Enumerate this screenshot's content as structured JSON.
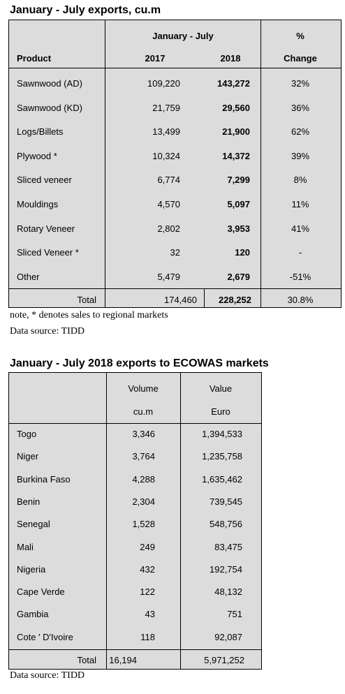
{
  "table1": {
    "title": "January - July exports, cu.m",
    "header": {
      "group": "January - July",
      "percent": "%",
      "product": "Product",
      "year1": "2017",
      "year2": "2018",
      "change": "Change"
    },
    "rows": [
      [
        "Sawnwood (AD)",
        "109,220",
        "143,272",
        "32%"
      ],
      [
        "Sawnwood (KD)",
        "21,759",
        "29,560",
        "36%"
      ],
      [
        "Logs/Billets",
        "13,499",
        "21,900",
        "62%"
      ],
      [
        "Plywood *",
        "10,324",
        "14,372",
        "39%"
      ],
      [
        "Sliced veneer",
        "6,774",
        "7,299",
        "8%"
      ],
      [
        "Mouldings",
        "4,570",
        "5,097",
        "11%"
      ],
      [
        "Rotary Veneer",
        "2,802",
        "3,953",
        "41%"
      ],
      [
        "Sliced Veneer *",
        "32",
        "120",
        "-"
      ],
      [
        "Other",
        "5,479",
        "2,679",
        "-51%"
      ]
    ],
    "total": [
      "Total",
      "174,460",
      "228,252",
      "30.8%"
    ],
    "note": "note,  * denotes sales to regional markets",
    "source": "Data source: TIDD"
  },
  "table2": {
    "title": "January - July 2018 exports to ECOWAS markets",
    "header": {
      "volume": "Volume",
      "value": "Value",
      "volume_unit": "cu.m",
      "value_unit": "Euro"
    },
    "rows": [
      [
        "Togo",
        "3,346",
        "1,394,533"
      ],
      [
        "Niger",
        "3,764",
        "1,235,758"
      ],
      [
        "Burkina Faso",
        "4,288",
        "1,635,462"
      ],
      [
        "Benin",
        "2,304",
        "739,545"
      ],
      [
        "Senegal",
        "1,528",
        "548,756"
      ],
      [
        "Mali",
        "249",
        "83,475"
      ],
      [
        "Nigeria",
        "432",
        "192,754"
      ],
      [
        "Cape Verde",
        "122",
        "48,132"
      ],
      [
        "Gambia",
        "43",
        "751"
      ],
      [
        "Cote ' D'Ivoire",
        "118",
        "92,087"
      ]
    ],
    "total": [
      "Total",
      "16,194",
      "5,971,252"
    ],
    "source": "Data source: TIDD"
  }
}
